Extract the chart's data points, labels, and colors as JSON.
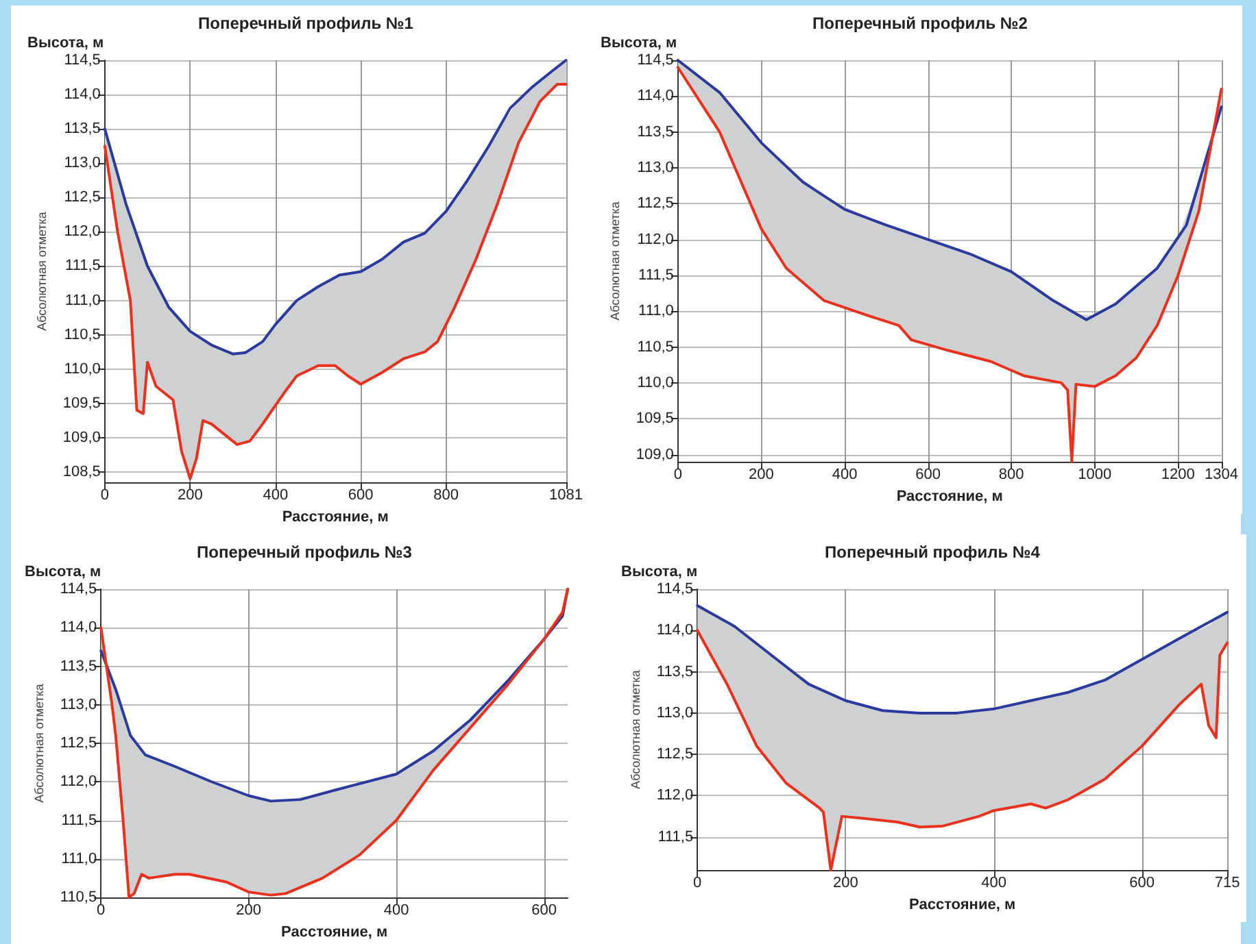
{
  "chart_data": [
    {
      "type": "line",
      "title": "Поперечный профиль №1",
      "xlabel": "Расстояние, м",
      "ylabel": "Абсолютная отметка",
      "annotations": [
        "Высота, м"
      ],
      "grid": true,
      "marker": "none",
      "line_style": "solid",
      "xlim": [
        0,
        1081
      ],
      "xticks": [
        0,
        200,
        400,
        600,
        800,
        1081
      ],
      "ylim": [
        108.35,
        114.5
      ],
      "yticks": [
        {
          "value": 108.5,
          "label": "108,5"
        },
        {
          "value": 109,
          "label": "109,0"
        },
        {
          "value": 109.5,
          "label": "109,5"
        },
        {
          "value": 110,
          "label": "110,0"
        },
        {
          "value": 110.5,
          "label": "110,5"
        },
        {
          "value": 111,
          "label": "111,0"
        },
        {
          "value": 111.5,
          "label": "111,5"
        },
        {
          "value": 112,
          "label": "112,0"
        },
        {
          "value": 112.5,
          "label": "112,5"
        },
        {
          "value": 113,
          "label": "113,0"
        },
        {
          "value": 113.5,
          "label": "113,5"
        },
        {
          "value": 114,
          "label": "114,0"
        },
        {
          "value": 114.5,
          "label": "114,5"
        }
      ],
      "series": [
        {
          "color": "#2b3a9e",
          "x": [
            0,
            50,
            100,
            150,
            200,
            250,
            300,
            330,
            370,
            400,
            450,
            500,
            550,
            600,
            650,
            700,
            750,
            800,
            850,
            900,
            950,
            1000,
            1050,
            1081
          ],
          "values": [
            113.5,
            112.4,
            111.5,
            110.9,
            110.55,
            110.35,
            110.22,
            110.24,
            110.4,
            110.65,
            111.0,
            111.2,
            111.37,
            111.42,
            111.6,
            111.85,
            111.98,
            112.3,
            112.75,
            113.25,
            113.8,
            114.1,
            114.35,
            114.5
          ]
        },
        {
          "color": "#e8321e",
          "x": [
            0,
            30,
            60,
            75,
            90,
            100,
            120,
            160,
            180,
            200,
            215,
            230,
            250,
            280,
            310,
            340,
            370,
            420,
            450,
            500,
            540,
            570,
            600,
            650,
            700,
            750,
            780,
            820,
            870,
            920,
            970,
            1020,
            1060,
            1081
          ],
          "values": [
            113.25,
            112.0,
            111.0,
            109.4,
            109.35,
            110.1,
            109.75,
            109.55,
            108.8,
            108.4,
            108.7,
            109.25,
            109.2,
            109.05,
            108.9,
            108.95,
            109.2,
            109.65,
            109.9,
            110.05,
            110.05,
            109.9,
            109.78,
            109.95,
            110.15,
            110.25,
            110.4,
            110.9,
            111.6,
            112.4,
            113.3,
            113.9,
            114.15,
            114.15
          ],
          "lower": [
            113.25,
            112.0,
            111.0,
            109.4,
            109.35,
            110.1,
            109.75,
            109.55,
            108.8,
            108.4,
            108.7,
            109.25,
            109.2,
            109.05,
            108.9,
            108.95,
            109.2,
            109.65,
            109.9,
            110.05,
            110.05,
            109.9,
            109.78,
            109.95,
            110.15,
            110.25,
            110.4,
            110.9,
            111.6,
            112.4,
            113.3,
            113.9,
            114.15,
            114.15
          ],
          "upper": [
            113.5,
            112.84,
            112.22,
            111.95,
            111.68,
            111.5,
            111.26,
            110.83,
            110.69,
            110.55,
            110.49,
            110.43,
            110.35,
            110.27,
            110.23,
            110.28,
            110.4,
            110.79,
            111.0,
            111.2,
            111.34,
            111.39,
            111.42,
            111.6,
            111.85,
            111.98,
            112.17,
            112.48,
            112.95,
            113.47,
            113.92,
            114.2,
            114.41,
            114.5
          ]
        }
      ]
    },
    {
      "type": "line",
      "title": "Поперечный профиль №2",
      "xlabel": "Расстояние, м",
      "ylabel": "Абсолютная отметка",
      "annotations": [
        "Высота, м"
      ],
      "grid": true,
      "marker": "none",
      "line_style": "solid",
      "xlim": [
        0,
        1304
      ],
      "xticks": [
        0,
        200,
        400,
        600,
        800,
        1000,
        1200,
        1304
      ],
      "ylim": [
        108.9,
        114.5
      ],
      "yticks": [
        {
          "value": 109,
          "label": "109,0"
        },
        {
          "value": 109.5,
          "label": "109,5"
        },
        {
          "value": 110,
          "label": "110,0"
        },
        {
          "value": 110.5,
          "label": "110,5"
        },
        {
          "value": 111,
          "label": "111,0"
        },
        {
          "value": 111.5,
          "label": "111,5"
        },
        {
          "value": 112,
          "label": "112,0"
        },
        {
          "value": 112.5,
          "label": "112,5"
        },
        {
          "value": 113,
          "label": "113,0"
        },
        {
          "value": 113.5,
          "label": "113,5"
        },
        {
          "value": 114,
          "label": "114,0"
        },
        {
          "value": 114.5,
          "label": "114,5"
        }
      ],
      "series": [
        {
          "color": "#2b3a9e",
          "x": [
            0,
            100,
            200,
            300,
            400,
            500,
            600,
            700,
            800,
            900,
            980,
            1050,
            1150,
            1220,
            1304
          ],
          "values": [
            114.5,
            114.05,
            113.35,
            112.8,
            112.42,
            112.2,
            112.0,
            111.8,
            111.55,
            111.15,
            110.88,
            111.1,
            111.6,
            112.2,
            113.85
          ]
        },
        {
          "color": "#e8321e",
          "x": [
            0,
            100,
            200,
            260,
            350,
            450,
            530,
            560,
            650,
            750,
            790,
            830,
            920,
            935,
            945,
            955,
            1000,
            1050,
            1100,
            1150,
            1200,
            1250,
            1304
          ],
          "values": [
            114.4,
            113.5,
            112.15,
            111.6,
            111.15,
            110.95,
            110.8,
            110.6,
            110.45,
            110.3,
            110.2,
            110.1,
            110.0,
            109.9,
            108.9,
            109.98,
            109.95,
            110.1,
            110.35,
            110.8,
            111.5,
            112.4,
            114.1
          ],
          "lower": [
            114.4,
            113.5,
            112.15,
            111.6,
            111.15,
            110.95,
            110.8,
            110.6,
            110.45,
            110.3,
            110.2,
            110.1,
            110.0,
            109.9,
            108.9,
            109.98,
            109.95,
            110.1,
            110.35,
            110.8,
            111.5,
            112.4,
            114.1
          ],
          "upper": [
            114.5,
            114.05,
            113.35,
            113.02,
            112.61,
            112.31,
            112.14,
            112.08,
            111.9,
            111.68,
            111.58,
            111.43,
            111.08,
            111.03,
            111.0,
            110.96,
            110.94,
            111.1,
            111.35,
            111.6,
            112.03,
            112.79,
            113.85
          ]
        }
      ]
    },
    {
      "type": "line",
      "title": "Поперечный профиль №3",
      "xlabel": "Расстояние, м",
      "ylabel": "Абсолютная отметка",
      "annotations": [
        "Высота, м"
      ],
      "grid": true,
      "marker": "none",
      "line_style": "solid",
      "xlim": [
        0,
        632
      ],
      "xticks": [
        0,
        200,
        400,
        600
      ],
      "ylim": [
        110.5,
        114.5
      ],
      "yticks": [
        {
          "value": 110.5,
          "label": "110,5"
        },
        {
          "value": 111,
          "label": "111,0"
        },
        {
          "value": 111.5,
          "label": "111,5"
        },
        {
          "value": 112,
          "label": "112,0"
        },
        {
          "value": 112.5,
          "label": "112,5"
        },
        {
          "value": 113,
          "label": "113,0"
        },
        {
          "value": 113.5,
          "label": "113,5"
        },
        {
          "value": 114,
          "label": "114,0"
        },
        {
          "value": 114.5,
          "label": "114,5"
        }
      ],
      "series": [
        {
          "color": "#2b3a9e",
          "x": [
            0,
            20,
            40,
            60,
            100,
            150,
            200,
            230,
            270,
            320,
            400,
            450,
            500,
            550,
            600,
            625,
            632
          ],
          "values": [
            113.7,
            113.2,
            112.6,
            112.35,
            112.2,
            112.0,
            111.82,
            111.75,
            111.77,
            111.9,
            112.1,
            112.4,
            112.8,
            113.3,
            113.85,
            114.15,
            114.5
          ]
        },
        {
          "color": "#e8321e",
          "x": [
            0,
            15,
            20,
            30,
            38,
            45,
            55,
            65,
            100,
            120,
            170,
            200,
            230,
            250,
            300,
            350,
            400,
            450,
            500,
            550,
            600,
            625,
            632
          ],
          "values": [
            114.0,
            113.0,
            112.6,
            111.5,
            110.5,
            110.55,
            110.8,
            110.75,
            110.8,
            110.8,
            110.7,
            110.57,
            110.53,
            110.55,
            110.75,
            111.05,
            111.5,
            112.15,
            112.7,
            113.25,
            113.85,
            114.2,
            114.5
          ],
          "lower": [
            114.0,
            113.0,
            112.6,
            111.5,
            110.5,
            110.55,
            110.8,
            110.75,
            110.8,
            110.8,
            110.7,
            110.57,
            110.53,
            110.55,
            110.75,
            111.05,
            111.5,
            112.15,
            112.7,
            113.25,
            113.85,
            114.2,
            114.5
          ],
          "upper": [
            113.7,
            113.33,
            113.2,
            112.9,
            112.66,
            112.54,
            112.41,
            112.33,
            112.2,
            112.12,
            111.93,
            111.82,
            111.75,
            111.76,
            111.85,
            111.98,
            112.1,
            112.4,
            112.8,
            113.3,
            113.85,
            114.15,
            114.5
          ]
        }
      ]
    },
    {
      "type": "line",
      "title": "Поперечный профиль №4",
      "xlabel": "Расстояние, м",
      "ylabel": "Абсолютная отметка",
      "annotations": [
        "Высота, м"
      ],
      "grid": true,
      "marker": "none",
      "line_style": "solid",
      "xlim": [
        0,
        715
      ],
      "xticks": [
        0,
        200,
        400,
        600,
        715
      ],
      "ylim": [
        111.1,
        114.5
      ],
      "yticks": [
        {
          "value": 111.5,
          "label": "111,5"
        },
        {
          "value": 112,
          "label": "112,0"
        },
        {
          "value": 112.5,
          "label": "112,5"
        },
        {
          "value": 113,
          "label": "113,0"
        },
        {
          "value": 113.5,
          "label": "113,5"
        },
        {
          "value": 114,
          "label": "114,0"
        },
        {
          "value": 114.5,
          "label": "114,5"
        }
      ],
      "series": [
        {
          "color": "#2b3a9e",
          "x": [
            0,
            50,
            100,
            150,
            200,
            250,
            300,
            350,
            400,
            450,
            500,
            550,
            600,
            650,
            715
          ],
          "values": [
            114.3,
            114.05,
            113.7,
            113.35,
            113.15,
            113.03,
            113.0,
            113.0,
            113.05,
            113.15,
            113.25,
            113.4,
            113.65,
            113.9,
            114.22
          ]
        },
        {
          "color": "#e8321e",
          "x": [
            0,
            40,
            80,
            120,
            165,
            170,
            180,
            195,
            230,
            270,
            300,
            330,
            380,
            400,
            450,
            470,
            500,
            550,
            600,
            650,
            680,
            690,
            700,
            705,
            715
          ],
          "values": [
            114.0,
            113.35,
            112.6,
            112.15,
            111.85,
            111.8,
            111.1,
            111.75,
            111.72,
            111.68,
            111.62,
            111.63,
            111.75,
            111.82,
            111.9,
            111.85,
            111.95,
            112.2,
            112.6,
            113.1,
            113.35,
            112.85,
            112.7,
            113.7,
            113.85
          ],
          "lower": [
            114.0,
            113.35,
            112.6,
            112.15,
            111.85,
            111.8,
            111.1,
            111.75,
            111.72,
            111.68,
            111.62,
            111.63,
            111.75,
            111.82,
            111.9,
            111.85,
            111.95,
            112.2,
            112.6,
            113.1,
            113.35,
            112.85,
            112.7,
            113.7,
            113.85
          ],
          "upper": [
            114.3,
            114.1,
            113.84,
            113.56,
            113.29,
            113.27,
            113.23,
            113.17,
            113.08,
            113.02,
            113.0,
            113.0,
            113.03,
            113.05,
            113.15,
            113.19,
            113.25,
            113.4,
            113.65,
            113.9,
            114.02,
            114.06,
            114.13,
            114.16,
            114.22
          ]
        }
      ]
    }
  ]
}
